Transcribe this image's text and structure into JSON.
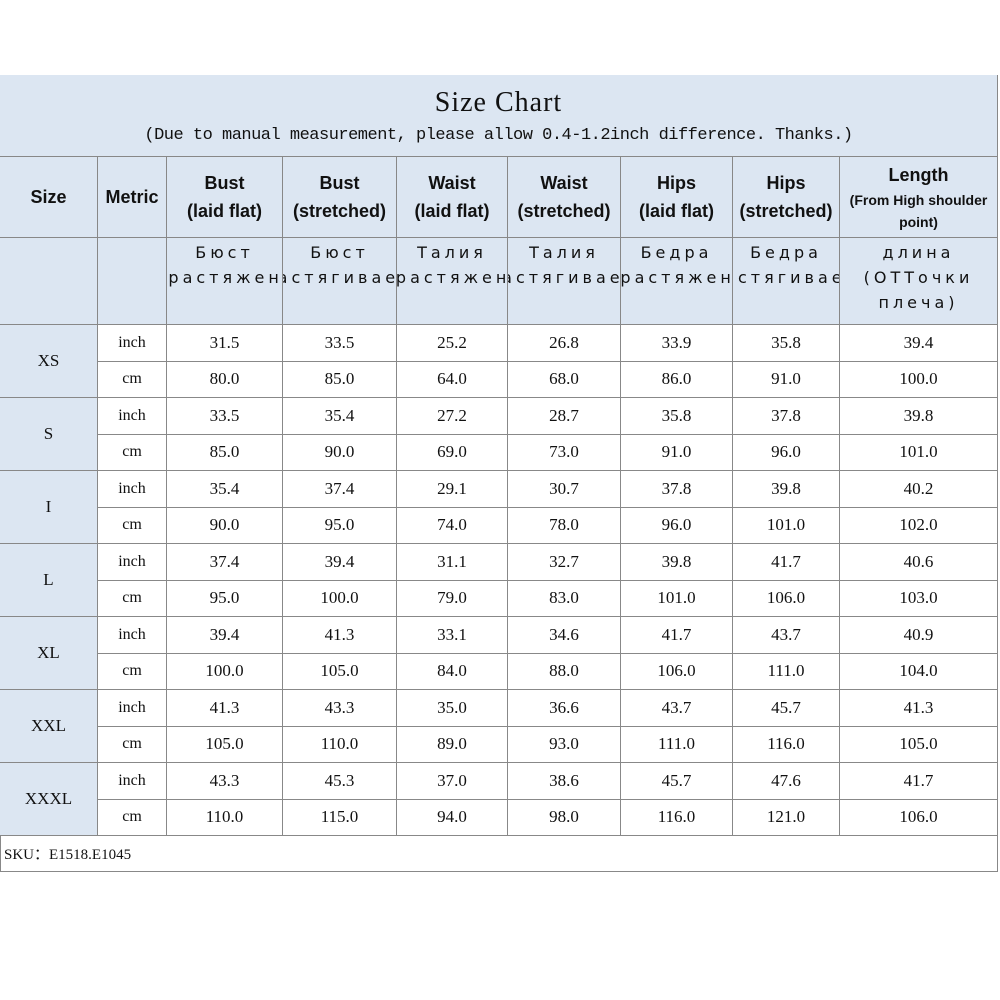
{
  "header": {
    "title": "Size Chart",
    "subtitle": "(Due to manual measurement, please allow 0.4-1.2inch difference. Thanks.)"
  },
  "columns": [
    {
      "title": "Size"
    },
    {
      "title": "Metric"
    },
    {
      "title": "Bust",
      "sub": "(laid flat)"
    },
    {
      "title": "Bust",
      "sub": "(stretched)"
    },
    {
      "title": "Waist",
      "sub": "(laid flat)"
    },
    {
      "title": "Waist",
      "sub": "(stretched)"
    },
    {
      "title": "Hips",
      "sub": "(laid flat)"
    },
    {
      "title": "Hips",
      "sub": "(stretched)"
    },
    {
      "title": "Length",
      "sub": "(From High shoulder point)"
    }
  ],
  "russian": [
    "Бюст (Дорастяжения)",
    "Бюст (Растягиваетс",
    "Талия (Дорастяжения)",
    "Талия (Растягиваетс",
    "Бедра (Дорастяжения)",
    "Бедра (Растягиваетс",
    "длина (ОТТочки плеча)"
  ],
  "sizes": [
    {
      "size": "XS",
      "rows": [
        {
          "metric": "inch",
          "values": [
            "31.5",
            "33.5",
            "25.2",
            "26.8",
            "33.9",
            "35.8",
            "39.4"
          ]
        },
        {
          "metric": "cm",
          "values": [
            "80.0",
            "85.0",
            "64.0",
            "68.0",
            "86.0",
            "91.0",
            "100.0"
          ]
        }
      ]
    },
    {
      "size": "S",
      "rows": [
        {
          "metric": "inch",
          "values": [
            "33.5",
            "35.4",
            "27.2",
            "28.7",
            "35.8",
            "37.8",
            "39.8"
          ]
        },
        {
          "metric": "cm",
          "values": [
            "85.0",
            "90.0",
            "69.0",
            "73.0",
            "91.0",
            "96.0",
            "101.0"
          ]
        }
      ]
    },
    {
      "size": "I",
      "rows": [
        {
          "metric": "inch",
          "values": [
            "35.4",
            "37.4",
            "29.1",
            "30.7",
            "37.8",
            "39.8",
            "40.2"
          ]
        },
        {
          "metric": "cm",
          "values": [
            "90.0",
            "95.0",
            "74.0",
            "78.0",
            "96.0",
            "101.0",
            "102.0"
          ]
        }
      ]
    },
    {
      "size": "L",
      "rows": [
        {
          "metric": "inch",
          "values": [
            "37.4",
            "39.4",
            "31.1",
            "32.7",
            "39.8",
            "41.7",
            "40.6"
          ]
        },
        {
          "metric": "cm",
          "values": [
            "95.0",
            "100.0",
            "79.0",
            "83.0",
            "101.0",
            "106.0",
            "103.0"
          ]
        }
      ]
    },
    {
      "size": "XL",
      "rows": [
        {
          "metric": "inch",
          "values": [
            "39.4",
            "41.3",
            "33.1",
            "34.6",
            "41.7",
            "43.7",
            "40.9"
          ]
        },
        {
          "metric": "cm",
          "values": [
            "100.0",
            "105.0",
            "84.0",
            "88.0",
            "106.0",
            "111.0",
            "104.0"
          ]
        }
      ]
    },
    {
      "size": "XXL",
      "rows": [
        {
          "metric": "inch",
          "values": [
            "41.3",
            "43.3",
            "35.0",
            "36.6",
            "43.7",
            "45.7",
            "41.3"
          ]
        },
        {
          "metric": "cm",
          "values": [
            "105.0",
            "110.0",
            "89.0",
            "93.0",
            "111.0",
            "116.0",
            "105.0"
          ]
        }
      ]
    },
    {
      "size": "XXXL",
      "rows": [
        {
          "metric": "inch",
          "values": [
            "43.3",
            "45.3",
            "37.0",
            "38.6",
            "45.7",
            "47.6",
            "41.7"
          ]
        },
        {
          "metric": "cm",
          "values": [
            "110.0",
            "115.0",
            "94.0",
            "98.0",
            "116.0",
            "121.0",
            "106.0"
          ]
        }
      ]
    }
  ],
  "sku": "SKU：E1518.E1045"
}
